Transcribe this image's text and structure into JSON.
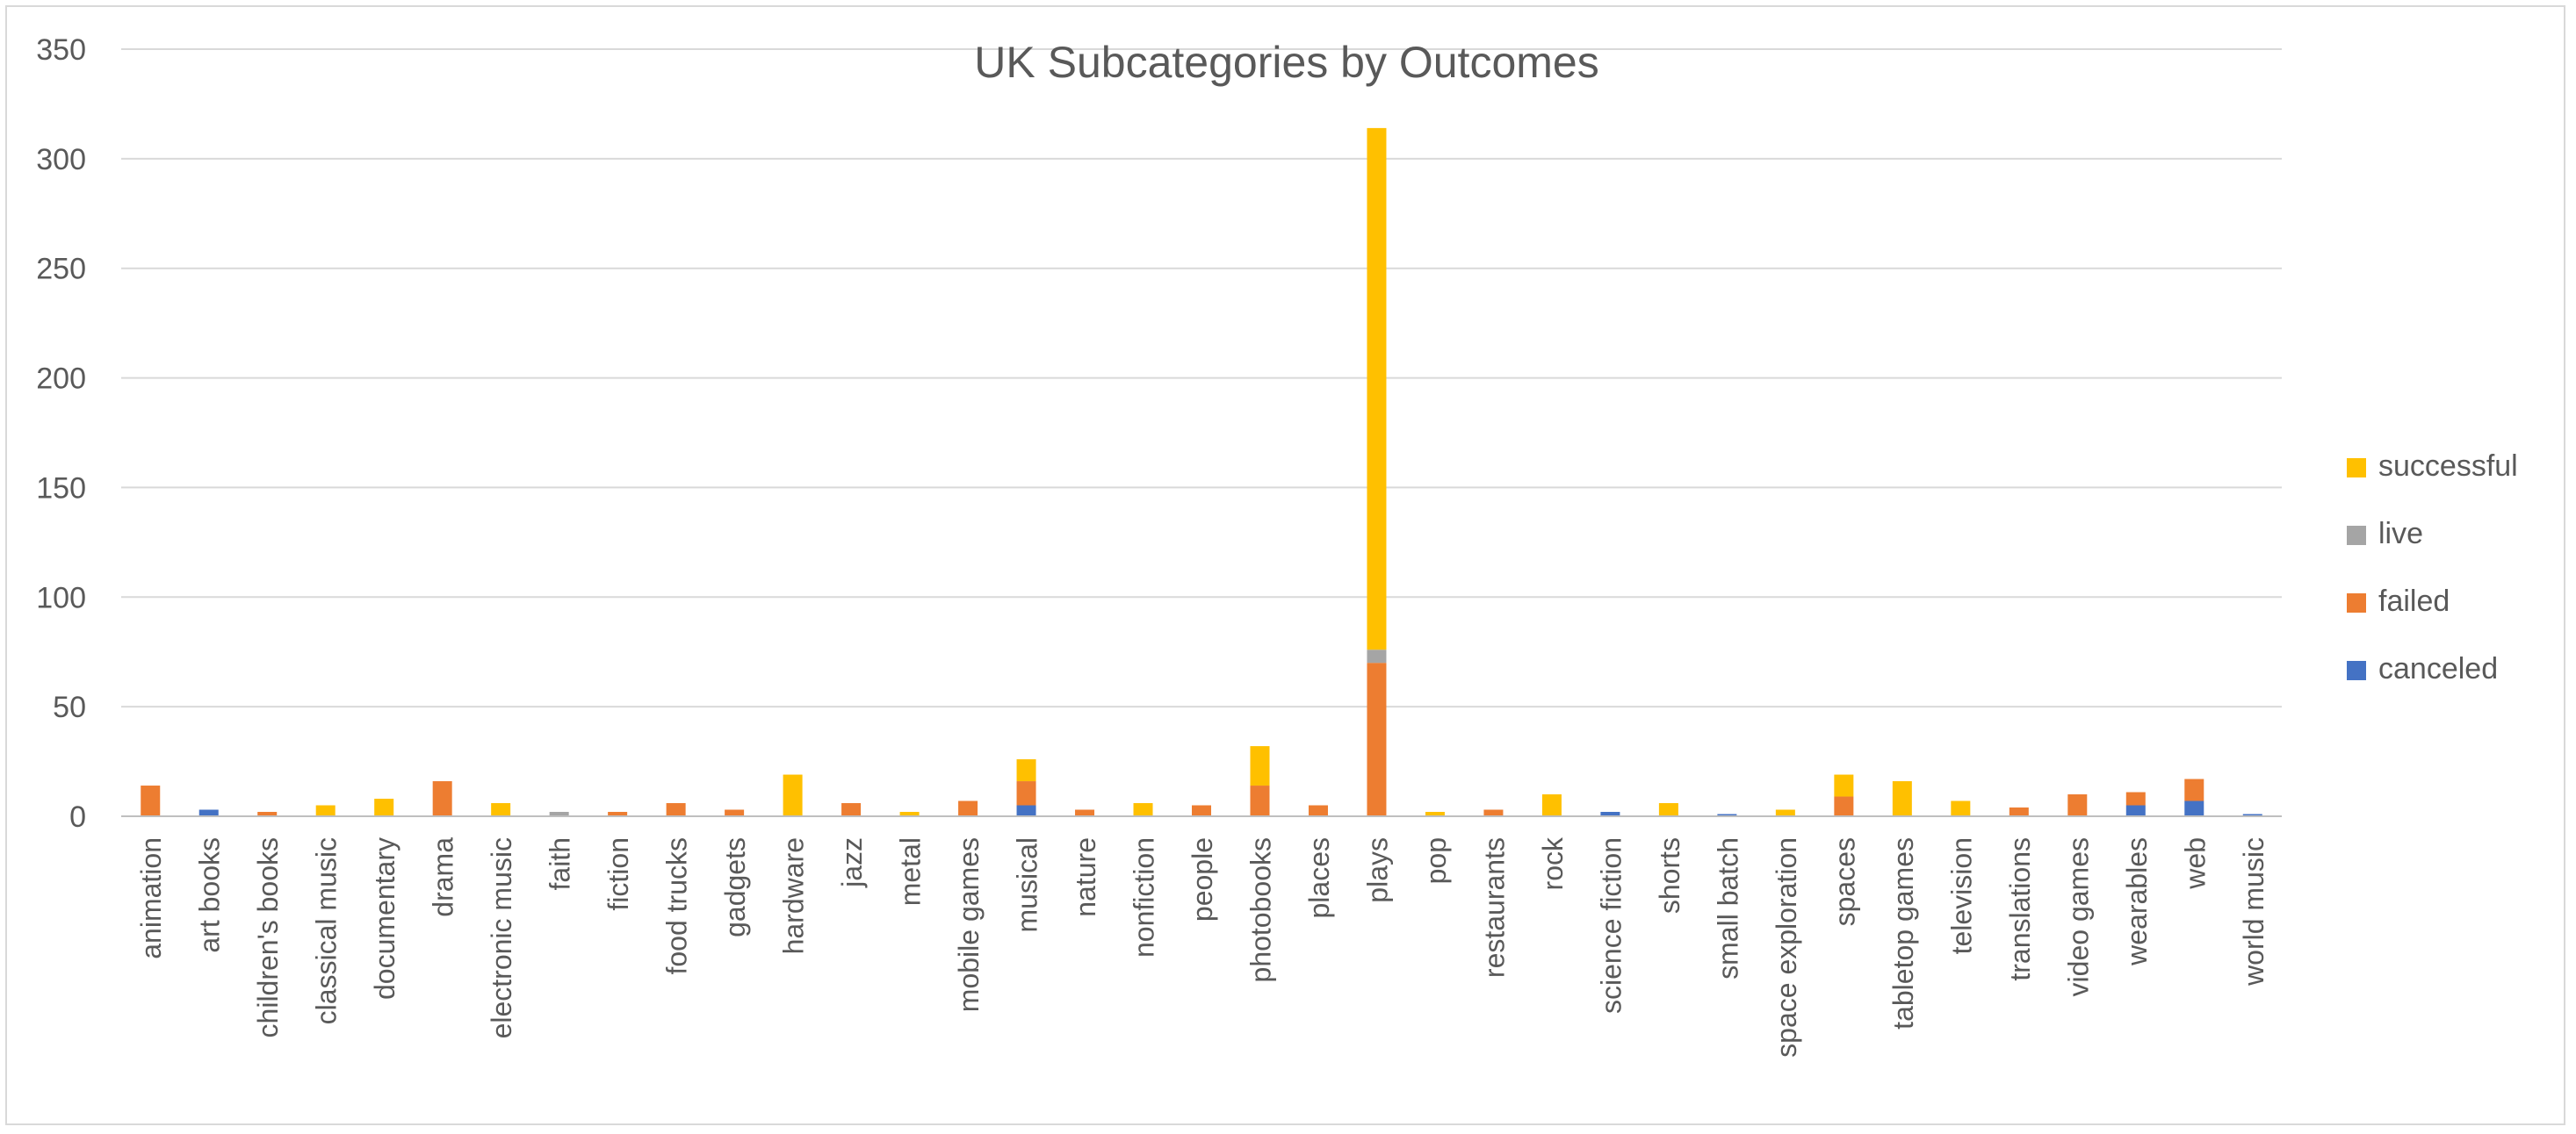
{
  "chart_data": {
    "type": "bar",
    "stacked": true,
    "title": "UK Subcategories by Outcomes",
    "xlabel": "",
    "ylabel": "",
    "ylim": [
      0,
      350
    ],
    "yticks": [
      0,
      50,
      100,
      150,
      200,
      250,
      300,
      350
    ],
    "grid": true,
    "legend_position": "right",
    "categories": [
      "animation",
      "art books",
      "children's books",
      "classical music",
      "documentary",
      "drama",
      "electronic music",
      "faith",
      "fiction",
      "food trucks",
      "gadgets",
      "hardware",
      "jazz",
      "metal",
      "mobile games",
      "musical",
      "nature",
      "nonfiction",
      "people",
      "photobooks",
      "places",
      "plays",
      "pop",
      "restaurants",
      "rock",
      "science fiction",
      "shorts",
      "small batch",
      "space exploration",
      "spaces",
      "tabletop games",
      "television",
      "translations",
      "video games",
      "wearables",
      "web",
      "world music"
    ],
    "series": [
      {
        "name": "canceled",
        "color": "#4472c4",
        "values": [
          0,
          3,
          0,
          0,
          0,
          0,
          0,
          0,
          0,
          0,
          0,
          0,
          0,
          0,
          0,
          5,
          0,
          0,
          0,
          0,
          0,
          0,
          0,
          0,
          0,
          2,
          0,
          1,
          0,
          0,
          0,
          0,
          0,
          0,
          5,
          7,
          1
        ]
      },
      {
        "name": "failed",
        "color": "#ed7d31",
        "values": [
          14,
          0,
          2,
          0,
          0,
          16,
          0,
          0,
          2,
          6,
          3,
          0,
          6,
          0,
          7,
          11,
          3,
          0,
          5,
          14,
          5,
          70,
          0,
          3,
          0,
          0,
          0,
          0,
          0,
          9,
          0,
          0,
          4,
          10,
          6,
          10,
          0
        ]
      },
      {
        "name": "live",
        "color": "#a5a5a5",
        "values": [
          0,
          0,
          0,
          0,
          0,
          0,
          0,
          2,
          0,
          0,
          0,
          0,
          0,
          0,
          0,
          0,
          0,
          0,
          0,
          0,
          0,
          6,
          0,
          0,
          0,
          0,
          0,
          0,
          0,
          0,
          0,
          0,
          0,
          0,
          0,
          0,
          0
        ]
      },
      {
        "name": "successful",
        "color": "#ffc000",
        "values": [
          0,
          0,
          0,
          5,
          8,
          0,
          6,
          0,
          0,
          0,
          0,
          19,
          0,
          2,
          0,
          10,
          0,
          6,
          0,
          18,
          0,
          238,
          2,
          0,
          10,
          0,
          6,
          0,
          3,
          10,
          16,
          7,
          0,
          0,
          0,
          0,
          0
        ]
      }
    ],
    "legend_order": [
      "successful",
      "live",
      "failed",
      "canceled"
    ],
    "colors": {
      "gridline": "#d9d9d9",
      "axis_line": "#bfbfbf",
      "text": "#595959",
      "frame": "#d9d9d9"
    }
  }
}
